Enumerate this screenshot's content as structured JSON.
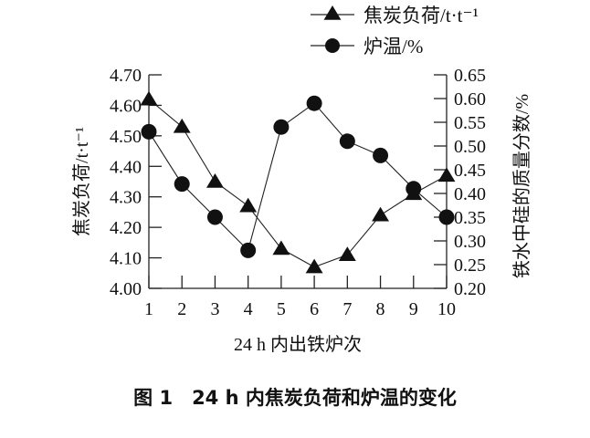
{
  "chart_data": {
    "type": "line",
    "caption": "图 1　24 h 内焦炭负荷和炉温的变化",
    "xlabel": "24 h 内出铁炉次",
    "ylabel_left": "焦炭负荷/t·t⁻¹",
    "ylabel_right": "铁水中硅的质量分数/%",
    "x": [
      1,
      2,
      3,
      4,
      5,
      6,
      7,
      8,
      9,
      10
    ],
    "xlim": [
      1,
      10
    ],
    "ylim_left": [
      4.0,
      4.7
    ],
    "ylim_right": [
      0.2,
      0.65
    ],
    "left_ticks": [
      "4.00",
      "4.10",
      "4.20",
      "4.30",
      "4.40",
      "4.50",
      "4.60",
      "4.70"
    ],
    "right_ticks": [
      "0.20",
      "0.25",
      "0.30",
      "0.35",
      "0.40",
      "0.45",
      "0.50",
      "0.55",
      "0.60",
      "0.65"
    ],
    "grid": false,
    "legend_placement": "top-right",
    "series": [
      {
        "name": "焦炭负荷/t·t⁻¹",
        "axis": "left",
        "marker": "triangle",
        "values": [
          4.62,
          4.53,
          4.35,
          4.27,
          4.13,
          4.07,
          4.11,
          4.24,
          4.31,
          4.37
        ]
      },
      {
        "name": "炉温/%",
        "axis": "right",
        "marker": "circle",
        "values": [
          0.53,
          0.42,
          0.35,
          0.28,
          0.54,
          0.59,
          0.51,
          0.48,
          0.41,
          0.35
        ]
      }
    ]
  }
}
